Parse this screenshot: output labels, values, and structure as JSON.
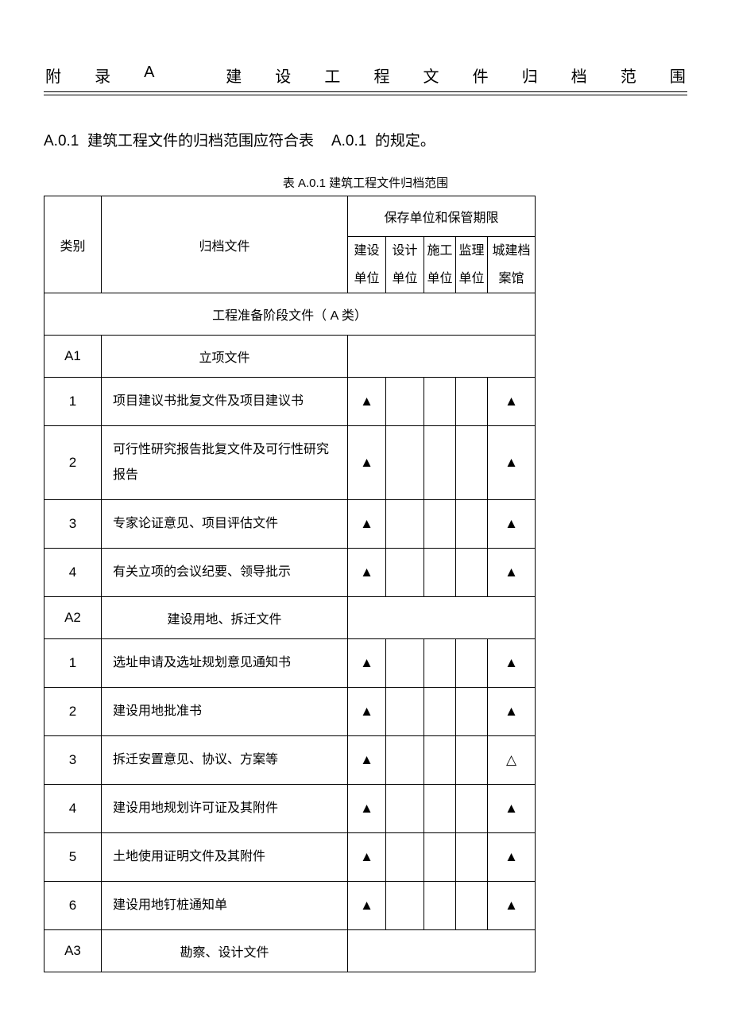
{
  "title_chars": [
    "附",
    "录",
    "A",
    "",
    "建",
    "设",
    "工",
    "程",
    "文",
    "件",
    "归",
    "档",
    "范",
    "围"
  ],
  "intro": {
    "prefix": "A.0.1",
    "text_a": "建筑工程文件的归档范围应符合表",
    "code": "A.0.1",
    "text_b": "的规定。"
  },
  "caption": "表 A.0.1 建筑工程文件归档范围",
  "header": {
    "cat": "类别",
    "doc": "归档文件",
    "group": "保存单位和保管期限",
    "units": [
      "建设单位",
      "设计单位",
      "施工单位",
      "监理单位",
      "城建档案馆"
    ]
  },
  "marks": {
    "solid": "▲",
    "hollow": "△"
  },
  "section": {
    "label_a": "工程准备阶段文件（",
    "label_b": "A 类）"
  },
  "groups": [
    {
      "code": "A1",
      "title": "立项文件",
      "rows": [
        {
          "n": "1",
          "doc": "项目建议书批复文件及项目建议书",
          "m": [
            "▲",
            "",
            "",
            "",
            "▲"
          ]
        },
        {
          "n": "2",
          "doc": "可行性研究报告批复文件及可行性研究报告",
          "m": [
            "▲",
            "",
            "",
            "",
            "▲"
          ]
        },
        {
          "n": "3",
          "doc": "专家论证意见、项目评估文件",
          "m": [
            "▲",
            "",
            "",
            "",
            "▲"
          ]
        },
        {
          "n": "4",
          "doc": "有关立项的会议纪要、领导批示",
          "m": [
            "▲",
            "",
            "",
            "",
            "▲"
          ]
        }
      ]
    },
    {
      "code": "A2",
      "title": "建设用地、拆迁文件",
      "rows": [
        {
          "n": "1",
          "doc": "选址申请及选址规划意见通知书",
          "m": [
            "▲",
            "",
            "",
            "",
            "▲"
          ]
        },
        {
          "n": "2",
          "doc": "建设用地批准书",
          "m": [
            "▲",
            "",
            "",
            "",
            "▲"
          ]
        },
        {
          "n": "3",
          "doc": "拆迁安置意见、协议、方案等",
          "m": [
            "▲",
            "",
            "",
            "",
            "△"
          ]
        },
        {
          "n": "4",
          "doc": "建设用地规划许可证及其附件",
          "m": [
            "▲",
            "",
            "",
            "",
            "▲"
          ]
        },
        {
          "n": "5",
          "doc": "土地使用证明文件及其附件",
          "m": [
            "▲",
            "",
            "",
            "",
            "▲"
          ]
        },
        {
          "n": "6",
          "doc": "建设用地钉桩通知单",
          "m": [
            "▲",
            "",
            "",
            "",
            "▲"
          ]
        }
      ]
    },
    {
      "code": "A3",
      "title": "勘察、设计文件",
      "rows": []
    }
  ]
}
